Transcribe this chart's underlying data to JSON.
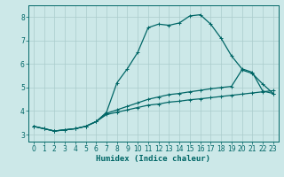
{
  "xlabel": "Humidex (Indice chaleur)",
  "background_color": "#cce8e8",
  "grid_color": "#aacccc",
  "line_color": "#006666",
  "xlim": [
    -0.5,
    23.5
  ],
  "ylim": [
    2.7,
    8.5
  ],
  "xticks": [
    0,
    1,
    2,
    3,
    4,
    5,
    6,
    7,
    8,
    9,
    10,
    11,
    12,
    13,
    14,
    15,
    16,
    17,
    18,
    19,
    20,
    21,
    22,
    23
  ],
  "yticks": [
    3,
    4,
    5,
    6,
    7,
    8
  ],
  "curve1_y": [
    3.35,
    3.25,
    3.15,
    3.2,
    3.25,
    3.35,
    3.55,
    3.95,
    5.2,
    5.8,
    6.5,
    7.55,
    7.7,
    7.65,
    7.75,
    8.05,
    8.1,
    7.7,
    7.1,
    6.35,
    5.8,
    5.65,
    4.85,
    4.75
  ],
  "curve2_y": [
    3.35,
    3.25,
    3.15,
    3.2,
    3.25,
    3.35,
    3.55,
    3.9,
    4.05,
    4.2,
    4.35,
    4.5,
    4.6,
    4.7,
    4.75,
    4.82,
    4.88,
    4.95,
    5.0,
    5.05,
    5.75,
    5.6,
    5.15,
    4.75
  ],
  "curve3_y": [
    3.35,
    3.25,
    3.15,
    3.2,
    3.25,
    3.35,
    3.55,
    3.85,
    3.95,
    4.05,
    4.15,
    4.25,
    4.3,
    4.38,
    4.42,
    4.48,
    4.52,
    4.57,
    4.62,
    4.67,
    4.72,
    4.77,
    4.82,
    4.87
  ],
  "marker_size": 2.5,
  "linewidth": 0.9
}
